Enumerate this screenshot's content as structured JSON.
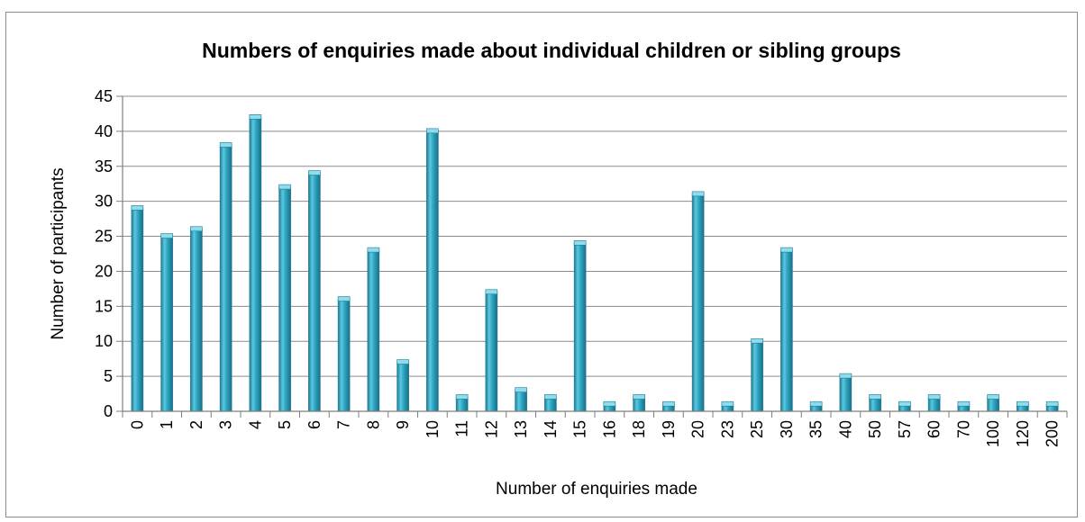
{
  "chart_data": {
    "type": "bar",
    "title": "Numbers of enquiries made about individual children or sibling groups",
    "xlabel": "Number of enquiries made",
    "ylabel": "Number of participants",
    "categories": [
      "0",
      "1",
      "2",
      "3",
      "4",
      "5",
      "6",
      "7",
      "8",
      "9",
      "10",
      "11",
      "12",
      "13",
      "14",
      "15",
      "16",
      "18",
      "19",
      "20",
      "23",
      "25",
      "30",
      "35",
      "40",
      "50",
      "57",
      "60",
      "70",
      "100",
      "120",
      "200"
    ],
    "values": [
      29,
      25,
      26,
      38,
      42,
      32,
      34,
      16,
      23,
      7,
      40,
      2,
      17,
      3,
      2,
      24,
      1,
      2,
      1,
      31,
      1,
      10,
      23,
      1,
      5,
      2,
      1,
      2,
      1,
      2,
      1,
      1
    ],
    "ylim": [
      0,
      45
    ],
    "yticks": [
      0,
      5,
      10,
      15,
      20,
      25,
      30,
      35,
      40,
      45
    ],
    "grid": true,
    "legend": "none",
    "colors": {
      "bar": "#2ea6c2",
      "bar_dark": "#1c7a93",
      "bar_light": "#8fdcec",
      "grid": "#8c8c8c",
      "axis": "#7f7f7f"
    }
  }
}
